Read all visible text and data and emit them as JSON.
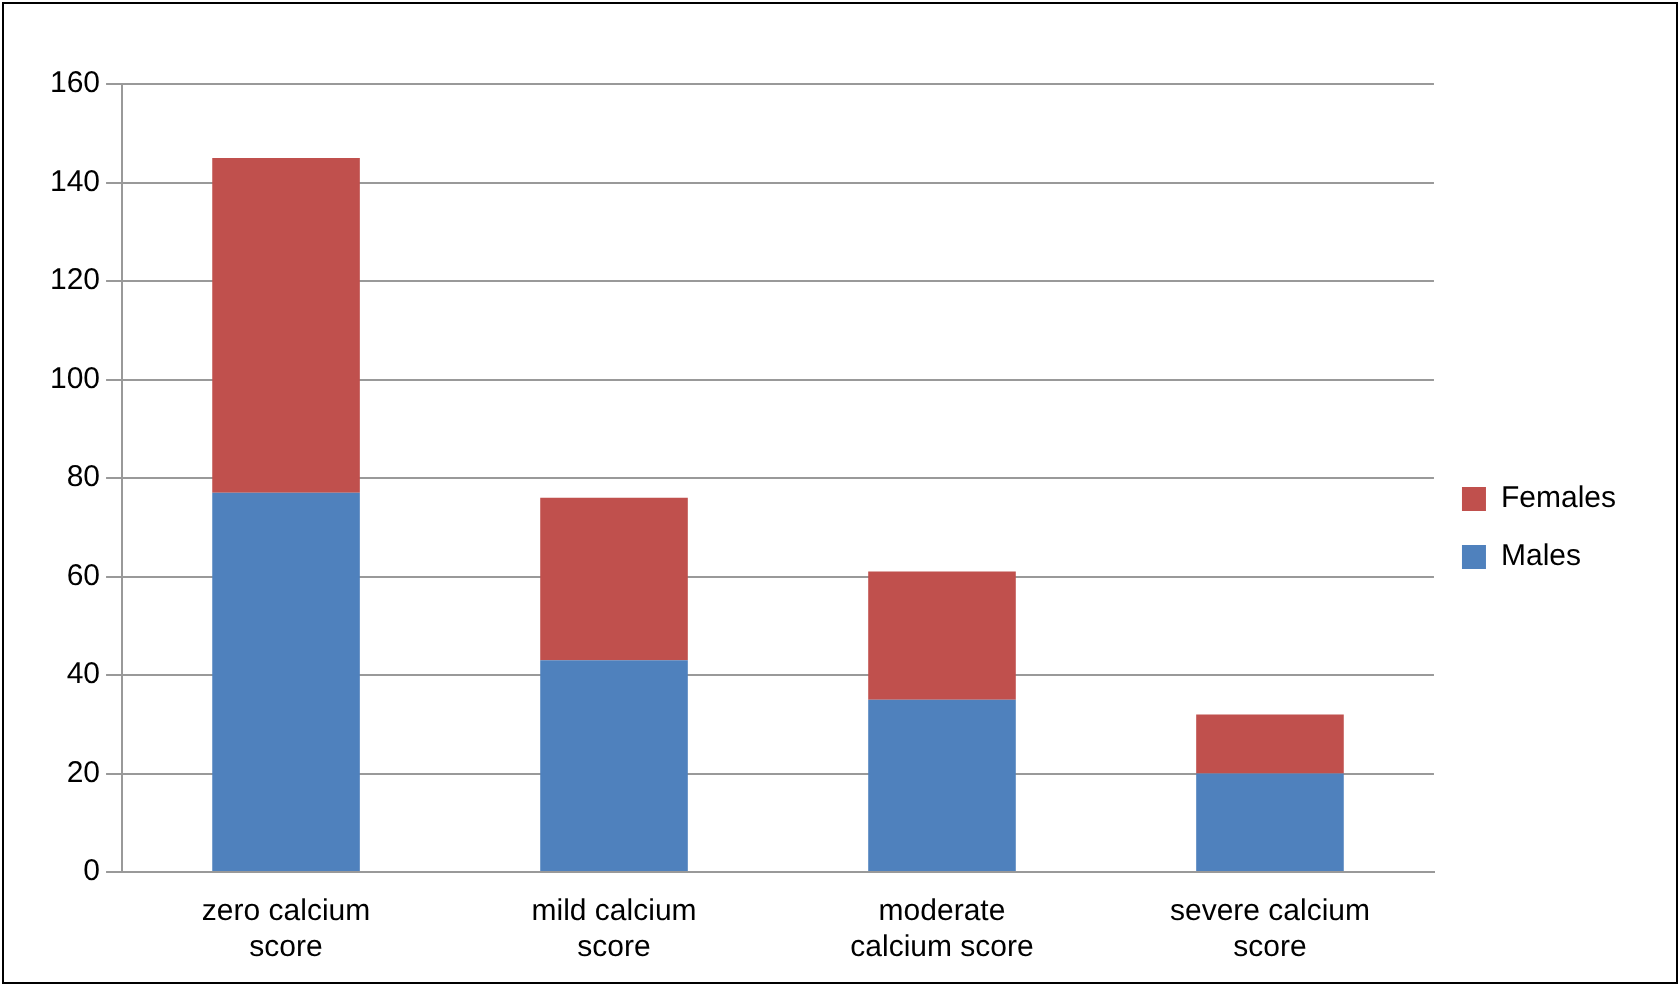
{
  "chart_data": {
    "type": "bar",
    "stacked": true,
    "categories": [
      "zero calcium score",
      "mild calcium score",
      "moderate calcium score",
      "severe calcium score"
    ],
    "series": [
      {
        "name": "Males",
        "color": "#4f81bd",
        "values": [
          77,
          43,
          35,
          20
        ]
      },
      {
        "name": "Females",
        "color": "#c0504d",
        "values": [
          68,
          33,
          26,
          12
        ]
      }
    ],
    "ylim": [
      0,
      160
    ],
    "yticks": [
      0,
      20,
      40,
      60,
      80,
      100,
      120,
      140,
      160
    ],
    "grid": "y",
    "legend": "right"
  }
}
